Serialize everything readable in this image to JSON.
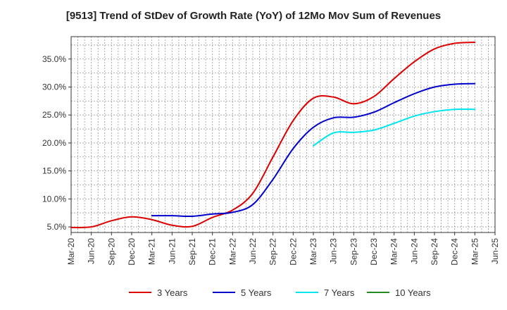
{
  "chart_data": {
    "type": "line",
    "title": "[9513]  Trend of StDev of Growth Rate (YoY) of 12Mo Mov Sum of Revenues",
    "xlabel": "",
    "ylabel": "",
    "x": [
      "Mar-20",
      "Jun-20",
      "Sep-20",
      "Dec-20",
      "Mar-21",
      "Jun-21",
      "Sep-21",
      "Dec-21",
      "Mar-22",
      "Jun-22",
      "Sep-22",
      "Dec-22",
      "Mar-23",
      "Jun-23",
      "Sep-23",
      "Dec-23",
      "Mar-24",
      "Jun-24",
      "Sep-24",
      "Dec-24",
      "Mar-25",
      "Jun-25"
    ],
    "ylim": [
      4.0,
      39.0
    ],
    "yticks": [
      5.0,
      10.0,
      15.0,
      20.0,
      25.0,
      30.0,
      35.0
    ],
    "ytick_labels": [
      "5.0%",
      "10.0%",
      "15.0%",
      "20.0%",
      "25.0%",
      "30.0%",
      "35.0%"
    ],
    "grid": true,
    "series": [
      {
        "name": "3 Years",
        "color": "#dd0000",
        "values": [
          4.9,
          5.0,
          6.1,
          6.8,
          6.3,
          5.3,
          5.1,
          6.7,
          8.0,
          11.0,
          17.5,
          24.0,
          28.0,
          28.2,
          27.0,
          28.3,
          31.5,
          34.5,
          36.8,
          37.8,
          38.0,
          null
        ]
      },
      {
        "name": "5 Years",
        "color": "#0000cc",
        "values": [
          null,
          null,
          null,
          null,
          7.0,
          7.0,
          6.9,
          7.3,
          7.6,
          9.0,
          13.5,
          19.0,
          22.8,
          24.5,
          24.6,
          25.5,
          27.2,
          28.8,
          30.0,
          30.5,
          30.6,
          null
        ]
      },
      {
        "name": "7 Years",
        "color": "#00e5ee",
        "values": [
          null,
          null,
          null,
          null,
          null,
          null,
          null,
          null,
          null,
          null,
          null,
          null,
          19.5,
          21.8,
          21.9,
          22.3,
          23.5,
          24.8,
          25.6,
          26.0,
          26.0,
          null
        ]
      },
      {
        "name": "10 Years",
        "color": "#228b22",
        "values": [
          null,
          null,
          null,
          null,
          null,
          null,
          null,
          null,
          null,
          null,
          null,
          null,
          null,
          null,
          null,
          null,
          null,
          null,
          null,
          null,
          null,
          null
        ]
      }
    ]
  }
}
